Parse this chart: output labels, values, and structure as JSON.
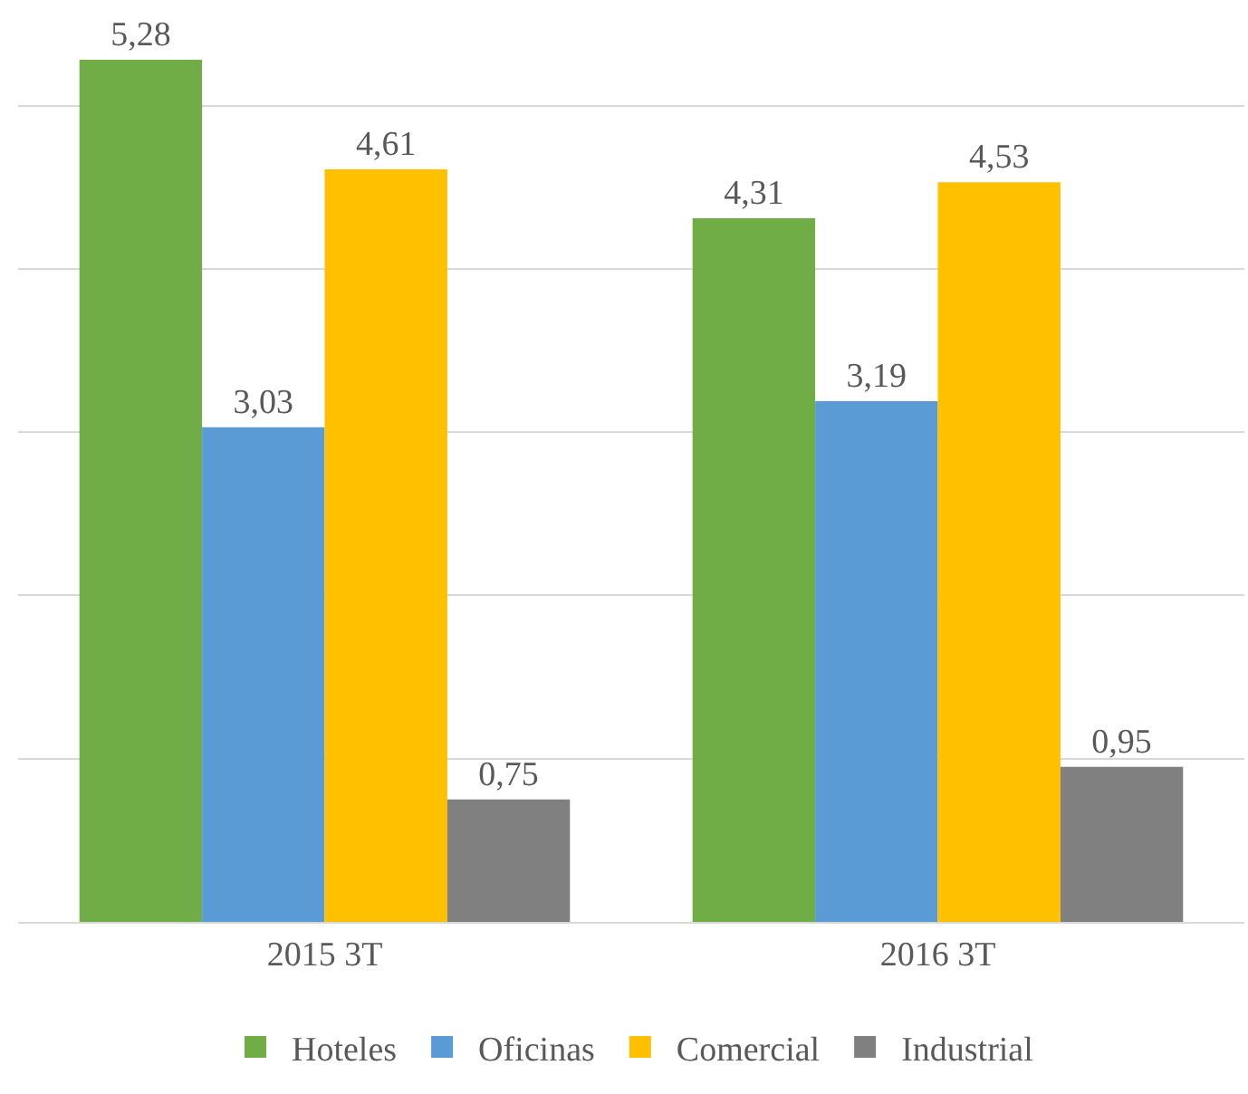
{
  "chart_data": {
    "type": "bar",
    "categories": [
      "2015 3T",
      "2016 3T"
    ],
    "series": [
      {
        "name": "Hoteles",
        "color": "#70ad47",
        "values": [
          5.28,
          4.31
        ],
        "value_labels": [
          "5,28",
          "4,31"
        ]
      },
      {
        "name": "Oficinas",
        "color": "#5b9bd5",
        "values": [
          3.03,
          3.19
        ],
        "value_labels": [
          "3,03",
          "3,19"
        ]
      },
      {
        "name": "Comercial",
        "color": "#ffc000",
        "values": [
          4.61,
          4.53
        ],
        "value_labels": [
          "4,61",
          "4,53"
        ]
      },
      {
        "name": "Industrial",
        "color": "#808080",
        "values": [
          0.75,
          0.95
        ],
        "value_labels": [
          "0,75",
          "0,95"
        ]
      }
    ],
    "yticks": [
      {
        "value": 0,
        "label": null
      },
      {
        "value": 1,
        "label": null
      },
      {
        "value": 2,
        "label": null
      },
      {
        "value": 3,
        "label": null
      },
      {
        "value": 4,
        "label": null
      },
      {
        "value": 5,
        "label": null
      }
    ],
    "tick_labels": "x",
    "grid": "y",
    "legend": "bottom"
  }
}
